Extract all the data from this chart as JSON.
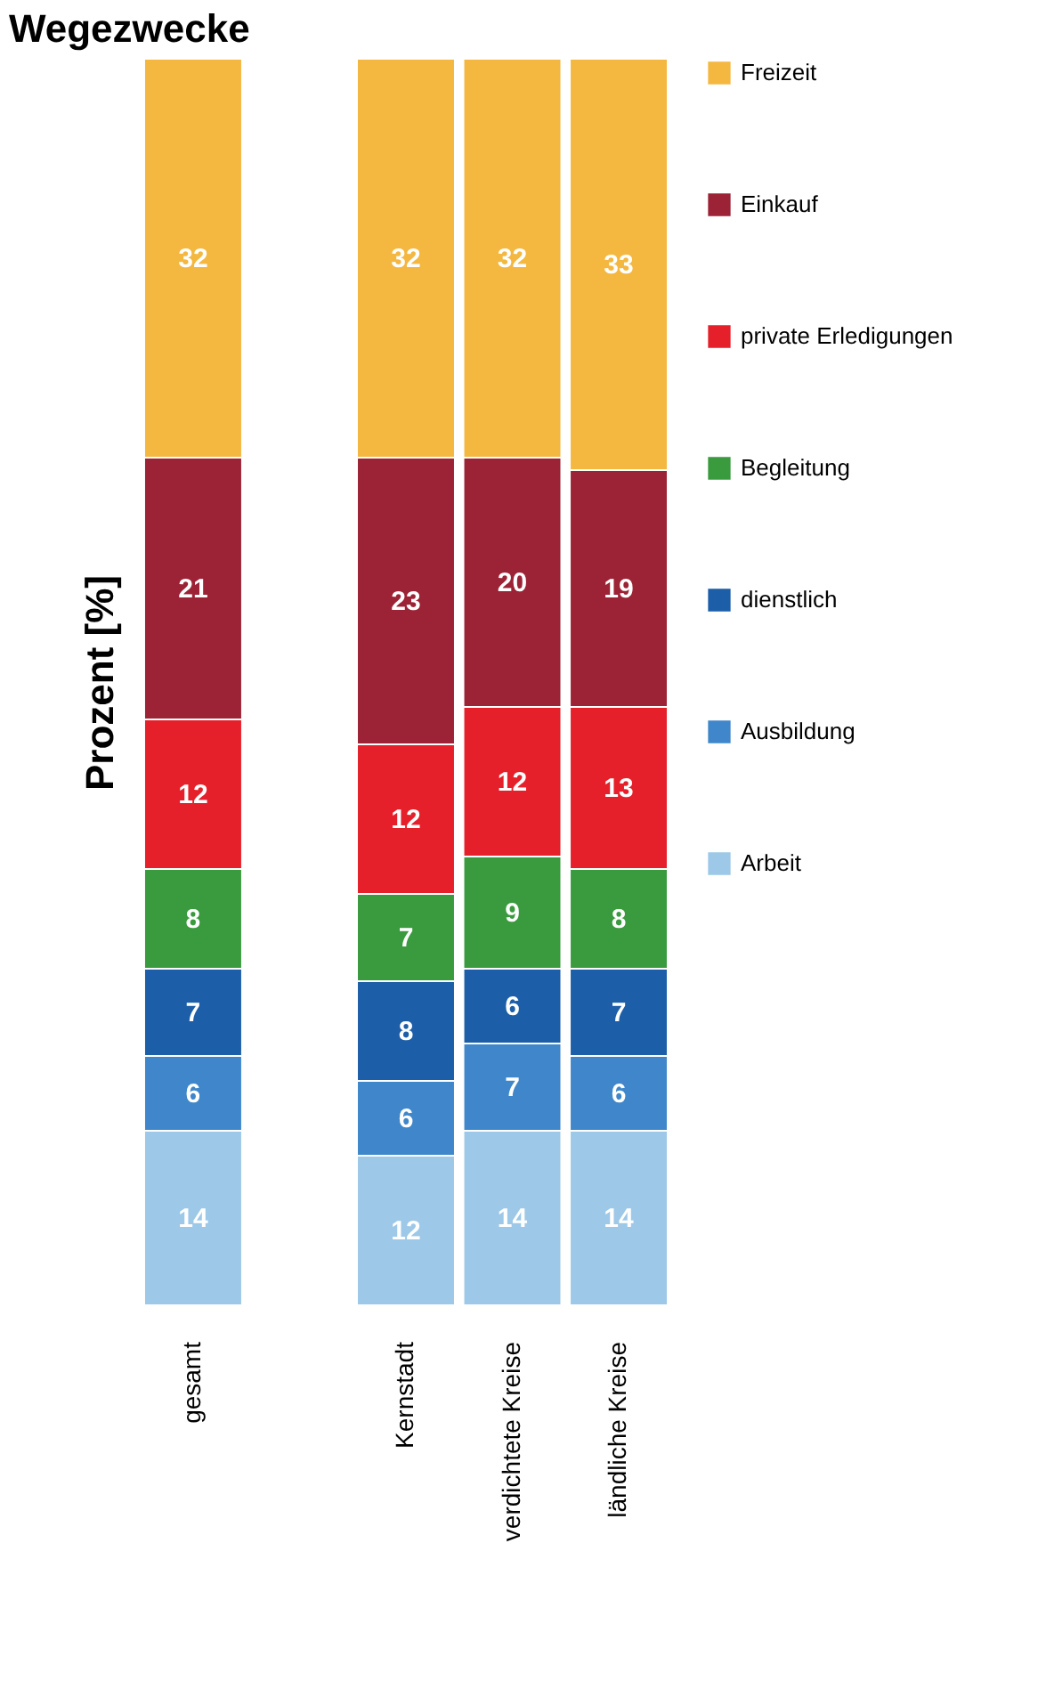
{
  "chart_data": {
    "type": "bar",
    "title": "Wegezwecke",
    "ylabel": "Prozent [%]",
    "stacked": true,
    "data_labels": true,
    "legend": "right",
    "tick_labels": "x",
    "grid": false,
    "categories": [
      "gesamt",
      null,
      "Kernstadt",
      "verdichtete Kreise",
      "ländliche Kreise"
    ],
    "series": [
      {
        "name": "Arbeit",
        "color": "#9dc8e8",
        "values": [
          14,
          null,
          12,
          14,
          14
        ]
      },
      {
        "name": "Ausbildung",
        "color": "#3f87ca",
        "values": [
          6,
          null,
          6,
          7,
          6
        ]
      },
      {
        "name": "dienstlich",
        "color": "#1d5ea8",
        "values": [
          7,
          null,
          8,
          6,
          7
        ]
      },
      {
        "name": "Begleitung",
        "color": "#3a9a3e",
        "values": [
          8,
          null,
          7,
          9,
          8
        ]
      },
      {
        "name": "private Erledigungen",
        "color": "#e5202a",
        "values": [
          12,
          null,
          12,
          12,
          13
        ]
      },
      {
        "name": "Einkauf",
        "color": "#9b2335",
        "values": [
          21,
          null,
          23,
          20,
          19
        ]
      },
      {
        "name": "Freizeit",
        "color": "#f4b740",
        "values": [
          32,
          null,
          32,
          32,
          33
        ]
      }
    ]
  }
}
